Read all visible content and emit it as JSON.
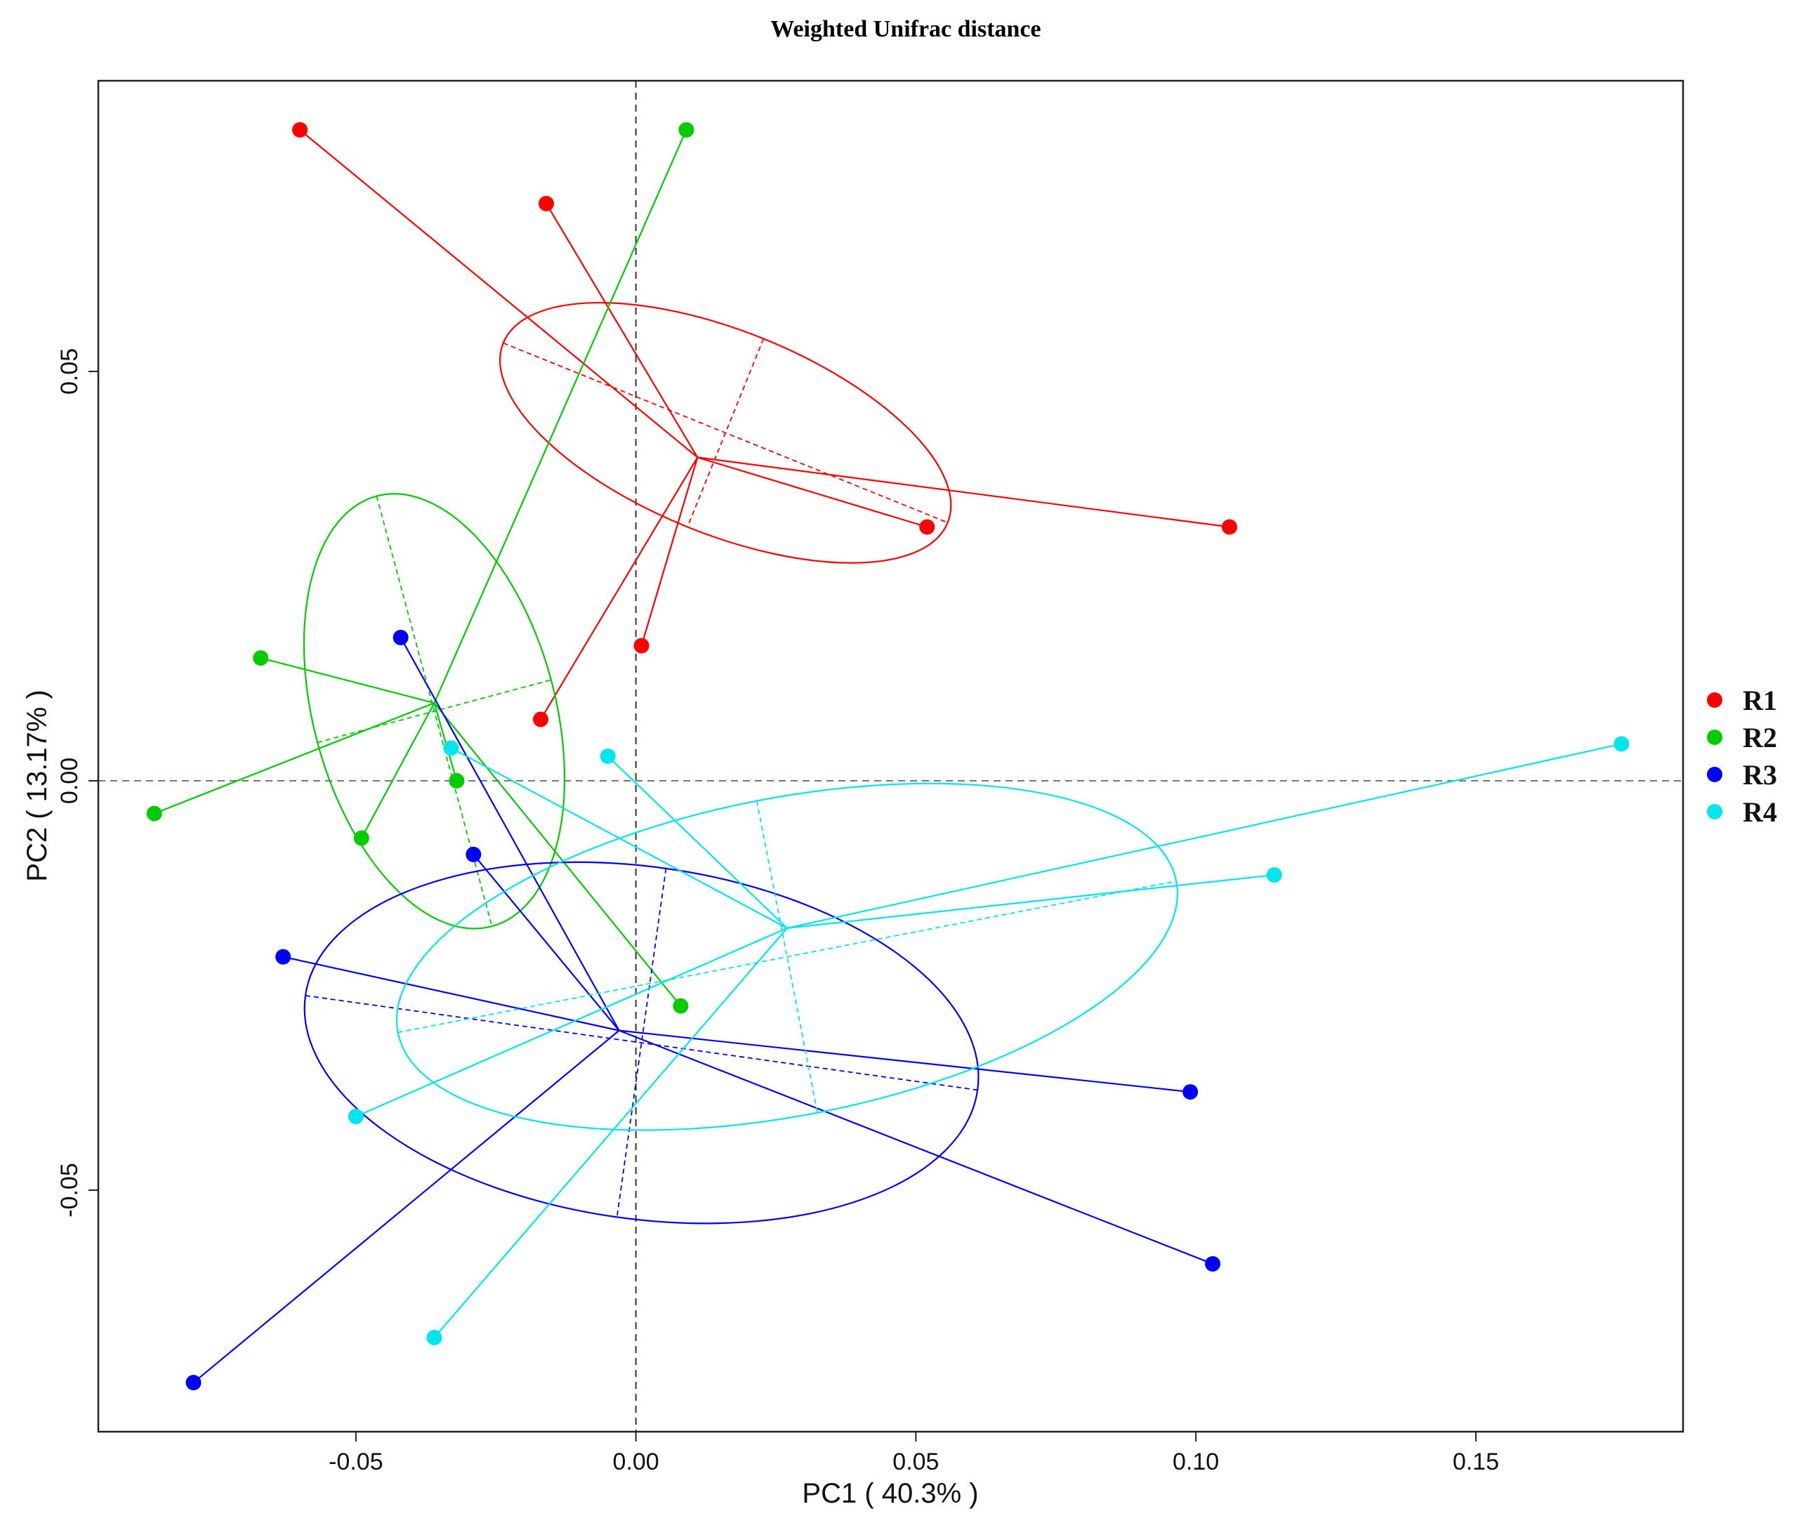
{
  "chart_data": {
    "type": "scatter",
    "title": "Weighted Unifrac distance",
    "xlabel": "PC1 ( 40.3% )",
    "ylabel": "PC2 ( 13.17% )",
    "xlim": [
      -0.096,
      0.187
    ],
    "ylim": [
      -0.0795,
      0.0855
    ],
    "x_ticks": [
      -0.05,
      0.0,
      0.05,
      0.1,
      0.15
    ],
    "x_tick_labels": [
      "-0.05",
      "0.00",
      "0.05",
      "0.10",
      "0.15"
    ],
    "y_ticks": [
      -0.05,
      0.0,
      0.05
    ],
    "y_tick_labels": [
      "-0.05",
      "0.00",
      "0.05"
    ],
    "reference_lines": {
      "x": 0,
      "y": 0,
      "style": "dashed"
    },
    "grid": false,
    "legend_position": "right",
    "series": [
      {
        "name": "R1",
        "color": "#ff0000",
        "centroid": [
          0.011,
          0.0395
        ],
        "points": [
          [
            -0.06,
            0.0795
          ],
          [
            -0.016,
            0.0705
          ],
          [
            0.052,
            0.031
          ],
          [
            0.106,
            0.031
          ],
          [
            0.001,
            0.0165
          ],
          [
            -0.017,
            0.0075
          ]
        ],
        "ellipse": {
          "center": [
            0.016,
            0.0425
          ],
          "rx": 0.0428,
          "ry": 0.0124,
          "angle_deg": -22
        }
      },
      {
        "name": "R2",
        "color": "#00cc00",
        "centroid": [
          -0.036,
          0.0095
        ],
        "points": [
          [
            0.009,
            0.0795
          ],
          [
            -0.067,
            0.015
          ],
          [
            -0.086,
            -0.004
          ],
          [
            -0.032,
            0.0
          ],
          [
            -0.049,
            -0.007
          ],
          [
            0.008,
            -0.0275
          ]
        ],
        "ellipse": {
          "center": [
            -0.036,
            0.0085
          ],
          "rx": 0.0216,
          "ry": 0.0272,
          "angle_deg": 15
        }
      },
      {
        "name": "R3",
        "color": "#0000ff",
        "centroid": [
          -0.003,
          -0.0305
        ],
        "points": [
          [
            -0.042,
            0.0175
          ],
          [
            -0.029,
            -0.009
          ],
          [
            -0.063,
            -0.0215
          ],
          [
            0.099,
            -0.038
          ],
          [
            0.103,
            -0.059
          ],
          [
            -0.079,
            -0.0735
          ]
        ],
        "ellipse": {
          "center": [
            0.001,
            -0.032
          ],
          "rx": 0.0606,
          "ry": 0.0215,
          "angle_deg": -8
        }
      },
      {
        "name": "R4",
        "color": "#00e5ee",
        "centroid": [
          0.027,
          -0.018
        ],
        "points": [
          [
            0.176,
            0.0045
          ],
          [
            0.114,
            -0.0115
          ],
          [
            -0.005,
            0.003
          ],
          [
            -0.033,
            0.004
          ],
          [
            -0.05,
            -0.041
          ],
          [
            -0.036,
            -0.068
          ]
        ],
        "ellipse": {
          "center": [
            0.027,
            -0.0215
          ],
          "rx": 0.0708,
          "ry": 0.0194,
          "angle_deg": 11
        }
      }
    ]
  }
}
